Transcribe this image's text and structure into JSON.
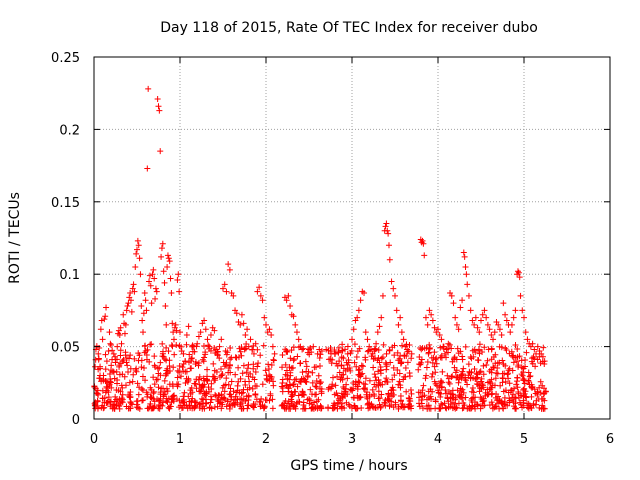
{
  "chart_data": {
    "type": "scatter",
    "title": "Day 118 of 2015, Rate Of TEC Index for receiver dubo",
    "xlabel": "GPS time / hours",
    "ylabel": "ROTI / TECUs",
    "xlim": [
      0,
      6
    ],
    "ylim": [
      0,
      0.25
    ],
    "x_ticks": [
      0,
      1,
      2,
      3,
      4,
      5,
      6
    ],
    "y_ticks": [
      0,
      0.05,
      0.1,
      0.15,
      0.2,
      0.25
    ],
    "x_tick_labels": [
      "0",
      "1",
      "2",
      "3",
      "4",
      "5",
      "6"
    ],
    "y_tick_labels": [
      "0",
      "0.05",
      "0.1",
      "0.15",
      "0.2",
      "0.25"
    ],
    "grid": true,
    "marker": "+",
    "colors": {
      "marker": "#ff0000",
      "grid": "#a0a0a0",
      "axis": "#000000"
    },
    "series": [
      {
        "name": "ROTI",
        "points": [
          [
            0.02,
            0.021
          ],
          [
            0.03,
            0.018
          ],
          [
            0.05,
            0.045
          ],
          [
            0.06,
            0.049
          ],
          [
            0.07,
            0.035
          ],
          [
            0.08,
            0.062
          ],
          [
            0.09,
            0.068
          ],
          [
            0.1,
            0.055
          ],
          [
            0.11,
            0.03
          ],
          [
            0.12,
            0.069
          ],
          [
            0.13,
            0.071
          ],
          [
            0.14,
            0.077
          ],
          [
            0.15,
            0.04
          ],
          [
            0.16,
            0.025
          ],
          [
            0.17,
            0.047
          ],
          [
            0.18,
            0.06
          ],
          [
            0.19,
            0.052
          ],
          [
            0.2,
            0.037
          ],
          [
            0.21,
            0.041
          ],
          [
            0.22,
            0.033
          ],
          [
            0.23,
            0.045
          ],
          [
            0.24,
            0.028
          ],
          [
            0.25,
            0.039
          ],
          [
            0.26,
            0.02
          ],
          [
            0.27,
            0.05
          ],
          [
            0.28,
            0.059
          ],
          [
            0.29,
            0.061
          ],
          [
            0.3,
            0.058
          ],
          [
            0.31,
            0.063
          ],
          [
            0.32,
            0.052
          ],
          [
            0.33,
            0.04
          ],
          [
            0.34,
            0.072
          ],
          [
            0.35,
            0.066
          ],
          [
            0.36,
            0.059
          ],
          [
            0.37,
            0.065
          ],
          [
            0.38,
            0.075
          ],
          [
            0.39,
            0.078
          ],
          [
            0.4,
            0.08
          ],
          [
            0.41,
            0.084
          ],
          [
            0.42,
            0.087
          ],
          [
            0.43,
            0.082
          ],
          [
            0.44,
            0.074
          ],
          [
            0.45,
            0.09
          ],
          [
            0.46,
            0.093
          ],
          [
            0.47,
            0.088
          ],
          [
            0.48,
            0.105
          ],
          [
            0.49,
            0.114
          ],
          [
            0.5,
            0.117
          ],
          [
            0.51,
            0.123
          ],
          [
            0.52,
            0.12
          ],
          [
            0.53,
            0.111
          ],
          [
            0.54,
            0.1
          ],
          [
            0.55,
            0.078
          ],
          [
            0.56,
            0.068
          ],
          [
            0.57,
            0.06
          ],
          [
            0.58,
            0.073
          ],
          [
            0.59,
            0.087
          ],
          [
            0.6,
            0.082
          ],
          [
            0.61,
            0.075
          ],
          [
            0.62,
            0.173
          ],
          [
            0.63,
            0.228
          ],
          [
            0.64,
            0.095
          ],
          [
            0.65,
            0.099
          ],
          [
            0.66,
            0.092
          ],
          [
            0.67,
            0.08
          ],
          [
            0.68,
            0.1
          ],
          [
            0.69,
            0.103
          ],
          [
            0.7,
            0.097
          ],
          [
            0.71,
            0.083
          ],
          [
            0.72,
            0.09
          ],
          [
            0.73,
            0.088
          ],
          [
            0.74,
            0.221
          ],
          [
            0.75,
            0.216
          ],
          [
            0.76,
            0.213
          ],
          [
            0.77,
            0.185
          ],
          [
            0.78,
            0.112
          ],
          [
            0.79,
            0.118
          ],
          [
            0.8,
            0.121
          ],
          [
            0.81,
            0.102
          ],
          [
            0.82,
            0.094
          ],
          [
            0.83,
            0.078
          ],
          [
            0.84,
            0.065
          ],
          [
            0.85,
            0.105
          ],
          [
            0.86,
            0.113
          ],
          [
            0.87,
            0.111
          ],
          [
            0.88,
            0.109
          ],
          [
            0.89,
            0.097
          ],
          [
            0.9,
            0.087
          ],
          [
            0.91,
            0.066
          ],
          [
            0.92,
            0.06
          ],
          [
            0.93,
            0.055
          ],
          [
            0.94,
            0.063
          ],
          [
            0.95,
            0.065
          ],
          [
            0.96,
            0.061
          ],
          [
            0.97,
            0.096
          ],
          [
            0.98,
            0.1
          ],
          [
            0.99,
            0.088
          ],
          [
            1.0,
            0.06
          ],
          [
            1.02,
            0.047
          ],
          [
            1.04,
            0.045
          ],
          [
            1.06,
            0.04
          ],
          [
            1.08,
            0.058
          ],
          [
            1.1,
            0.064
          ],
          [
            1.12,
            0.035
          ],
          [
            1.14,
            0.042
          ],
          [
            1.16,
            0.05
          ],
          [
            1.18,
            0.038
          ],
          [
            1.2,
            0.052
          ],
          [
            1.22,
            0.057
          ],
          [
            1.24,
            0.06
          ],
          [
            1.26,
            0.066
          ],
          [
            1.28,
            0.068
          ],
          [
            1.3,
            0.062
          ],
          [
            1.32,
            0.055
          ],
          [
            1.34,
            0.05
          ],
          [
            1.36,
            0.058
          ],
          [
            1.38,
            0.063
          ],
          [
            1.4,
            0.061
          ],
          [
            1.42,
            0.048
          ],
          [
            1.44,
            0.044
          ],
          [
            1.46,
            0.05
          ],
          [
            1.48,
            0.055
          ],
          [
            1.5,
            0.09
          ],
          [
            1.52,
            0.093
          ],
          [
            1.54,
            0.088
          ],
          [
            1.56,
            0.107
          ],
          [
            1.58,
            0.103
          ],
          [
            1.6,
            0.087
          ],
          [
            1.62,
            0.085
          ],
          [
            1.64,
            0.075
          ],
          [
            1.66,
            0.073
          ],
          [
            1.68,
            0.067
          ],
          [
            1.7,
            0.065
          ],
          [
            1.72,
            0.072
          ],
          [
            1.74,
            0.066
          ],
          [
            1.76,
            0.058
          ],
          [
            1.78,
            0.062
          ],
          [
            1.8,
            0.05
          ],
          [
            1.82,
            0.055
          ],
          [
            1.84,
            0.048
          ],
          [
            1.86,
            0.045
          ],
          [
            1.88,
            0.052
          ],
          [
            1.9,
            0.088
          ],
          [
            1.92,
            0.091
          ],
          [
            1.94,
            0.085
          ],
          [
            1.96,
            0.082
          ],
          [
            1.98,
            0.07
          ],
          [
            2.0,
            0.065
          ],
          [
            2.02,
            0.06
          ],
          [
            2.04,
            0.062
          ],
          [
            2.06,
            0.058
          ],
          [
            2.08,
            0.05
          ],
          [
            2.1,
            0.045
          ],
          [
            2.22,
            0.084
          ],
          [
            2.24,
            0.082
          ],
          [
            2.26,
            0.085
          ],
          [
            2.28,
            0.078
          ],
          [
            2.3,
            0.072
          ],
          [
            2.32,
            0.071
          ],
          [
            2.34,
            0.065
          ],
          [
            2.36,
            0.06
          ],
          [
            2.38,
            0.055
          ],
          [
            2.4,
            0.05
          ],
          [
            2.42,
            0.048
          ],
          [
            2.5,
            0.048
          ],
          [
            2.55,
            0.05
          ],
          [
            2.6,
            0.045
          ],
          [
            2.65,
            0.047
          ],
          [
            2.7,
            0.048
          ],
          [
            2.75,
            0.049
          ],
          [
            2.8,
            0.045
          ],
          [
            2.85,
            0.04
          ],
          [
            2.9,
            0.042
          ],
          [
            2.95,
            0.045
          ],
          [
            3.0,
            0.055
          ],
          [
            3.02,
            0.062
          ],
          [
            3.04,
            0.068
          ],
          [
            3.06,
            0.07
          ],
          [
            3.08,
            0.075
          ],
          [
            3.1,
            0.082
          ],
          [
            3.12,
            0.088
          ],
          [
            3.14,
            0.087
          ],
          [
            3.16,
            0.06
          ],
          [
            3.18,
            0.055
          ],
          [
            3.2,
            0.05
          ],
          [
            3.22,
            0.048
          ],
          [
            3.24,
            0.045
          ],
          [
            3.26,
            0.047
          ],
          [
            3.28,
            0.052
          ],
          [
            3.3,
            0.06
          ],
          [
            3.32,
            0.064
          ],
          [
            3.34,
            0.07
          ],
          [
            3.36,
            0.085
          ],
          [
            3.38,
            0.13
          ],
          [
            3.39,
            0.133
          ],
          [
            3.4,
            0.135
          ],
          [
            3.41,
            0.13
          ],
          [
            3.42,
            0.128
          ],
          [
            3.43,
            0.12
          ],
          [
            3.44,
            0.11
          ],
          [
            3.46,
            0.095
          ],
          [
            3.48,
            0.09
          ],
          [
            3.5,
            0.085
          ],
          [
            3.52,
            0.075
          ],
          [
            3.54,
            0.065
          ],
          [
            3.56,
            0.07
          ],
          [
            3.58,
            0.06
          ],
          [
            3.6,
            0.055
          ],
          [
            3.62,
            0.05
          ],
          [
            3.64,
            0.048
          ],
          [
            3.8,
            0.124
          ],
          [
            3.81,
            0.122
          ],
          [
            3.82,
            0.123
          ],
          [
            3.83,
            0.121
          ],
          [
            3.84,
            0.113
          ],
          [
            3.86,
            0.07
          ],
          [
            3.88,
            0.065
          ],
          [
            3.9,
            0.075
          ],
          [
            3.92,
            0.072
          ],
          [
            3.94,
            0.068
          ],
          [
            3.96,
            0.063
          ],
          [
            3.98,
            0.06
          ],
          [
            4.0,
            0.062
          ],
          [
            4.02,
            0.058
          ],
          [
            4.04,
            0.055
          ],
          [
            4.06,
            0.05
          ],
          [
            4.08,
            0.045
          ],
          [
            4.1,
            0.048
          ],
          [
            4.12,
            0.052
          ],
          [
            4.14,
            0.087
          ],
          [
            4.16,
            0.085
          ],
          [
            4.18,
            0.08
          ],
          [
            4.2,
            0.07
          ],
          [
            4.22,
            0.065
          ],
          [
            4.24,
            0.062
          ],
          [
            4.26,
            0.077
          ],
          [
            4.28,
            0.082
          ],
          [
            4.3,
            0.115
          ],
          [
            4.31,
            0.112
          ],
          [
            4.32,
            0.105
          ],
          [
            4.33,
            0.1
          ],
          [
            4.34,
            0.093
          ],
          [
            4.36,
            0.085
          ],
          [
            4.38,
            0.075
          ],
          [
            4.4,
            0.068
          ],
          [
            4.42,
            0.065
          ],
          [
            4.44,
            0.07
          ],
          [
            4.46,
            0.063
          ],
          [
            4.48,
            0.06
          ],
          [
            4.5,
            0.068
          ],
          [
            4.52,
            0.072
          ],
          [
            4.54,
            0.075
          ],
          [
            4.56,
            0.07
          ],
          [
            4.58,
            0.065
          ],
          [
            4.6,
            0.062
          ],
          [
            4.62,
            0.058
          ],
          [
            4.64,
            0.055
          ],
          [
            4.66,
            0.06
          ],
          [
            4.68,
            0.067
          ],
          [
            4.7,
            0.065
          ],
          [
            4.72,
            0.062
          ],
          [
            4.74,
            0.058
          ],
          [
            4.76,
            0.08
          ],
          [
            4.78,
            0.072
          ],
          [
            4.8,
            0.068
          ],
          [
            4.82,
            0.065
          ],
          [
            4.84,
            0.06
          ],
          [
            4.86,
            0.065
          ],
          [
            4.88,
            0.07
          ],
          [
            4.9,
            0.075
          ],
          [
            4.92,
            0.1
          ],
          [
            4.93,
            0.102
          ],
          [
            4.94,
            0.101
          ],
          [
            4.95,
            0.098
          ],
          [
            4.96,
            0.085
          ],
          [
            4.98,
            0.075
          ],
          [
            5.0,
            0.07
          ],
          [
            5.02,
            0.06
          ],
          [
            5.04,
            0.055
          ],
          [
            5.06,
            0.052
          ],
          [
            5.08,
            0.05
          ],
          [
            5.1,
            0.052
          ],
          [
            5.12,
            0.048
          ],
          [
            5.14,
            0.045
          ],
          [
            5.16,
            0.05
          ],
          [
            5.18,
            0.047
          ],
          [
            5.2,
            0.045
          ],
          [
            5.22,
            0.043
          ],
          [
            5.24,
            0.04
          ]
        ]
      }
    ],
    "dense_band": {
      "segments": [
        [
          0.0,
          2.1
        ],
        [
          2.18,
          2.65
        ],
        [
          2.72,
          3.7
        ],
        [
          3.77,
          5.26
        ]
      ],
      "y_min": 0.007,
      "y_max": 0.052,
      "count": 1500,
      "seed": 118
    }
  }
}
